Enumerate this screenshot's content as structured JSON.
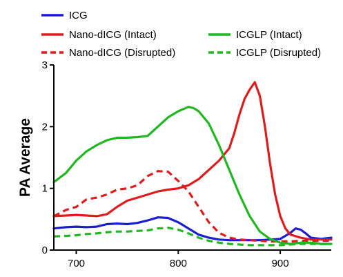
{
  "chart_data": {
    "type": "line",
    "title": "",
    "xlabel": "",
    "ylabel": "PA Average",
    "xlim": [
      678,
      950
    ],
    "ylim": [
      0,
      3
    ],
    "xticks": [
      700,
      800,
      900
    ],
    "yticks": [
      0,
      1,
      2,
      3
    ],
    "grid": false,
    "legend_position": "top",
    "series": [
      {
        "name": "ICG",
        "color": "#1b1bd6",
        "dash": "solid",
        "x": [
          678,
          690,
          700,
          710,
          720,
          730,
          740,
          750,
          760,
          770,
          780,
          790,
          800,
          810,
          820,
          830,
          840,
          850,
          860,
          870,
          880,
          890,
          900,
          910,
          915,
          920,
          925,
          930,
          940,
          950
        ],
        "y": [
          0.35,
          0.37,
          0.38,
          0.37,
          0.38,
          0.42,
          0.43,
          0.42,
          0.44,
          0.48,
          0.53,
          0.52,
          0.45,
          0.35,
          0.25,
          0.2,
          0.17,
          0.16,
          0.16,
          0.16,
          0.16,
          0.17,
          0.18,
          0.28,
          0.35,
          0.33,
          0.27,
          0.2,
          0.18,
          0.2
        ]
      },
      {
        "name": "Nano-dICG (Intact)",
        "color": "#e01b1b",
        "dash": "solid",
        "x": [
          678,
          690,
          700,
          710,
          720,
          730,
          740,
          750,
          760,
          770,
          780,
          790,
          800,
          810,
          820,
          830,
          840,
          850,
          855,
          860,
          865,
          870,
          875,
          880,
          885,
          890,
          895,
          900,
          905,
          910,
          920,
          930,
          950
        ],
        "y": [
          0.55,
          0.56,
          0.57,
          0.56,
          0.55,
          0.58,
          0.7,
          0.8,
          0.85,
          0.9,
          0.95,
          0.98,
          1.0,
          1.05,
          1.15,
          1.3,
          1.45,
          1.65,
          1.9,
          2.2,
          2.45,
          2.6,
          2.72,
          2.5,
          2.0,
          1.4,
          0.9,
          0.55,
          0.35,
          0.25,
          0.2,
          0.17,
          0.17
        ]
      },
      {
        "name": "Nano-dICG (Disrupted)",
        "color": "#e01b1b",
        "dash": "dashed",
        "x": [
          678,
          690,
          700,
          710,
          720,
          730,
          740,
          750,
          760,
          770,
          780,
          790,
          800,
          810,
          820,
          830,
          840,
          850,
          860,
          870,
          880,
          890,
          900,
          910,
          920,
          930,
          950
        ],
        "y": [
          0.55,
          0.65,
          0.7,
          0.82,
          0.85,
          0.9,
          0.98,
          1.0,
          1.05,
          1.2,
          1.28,
          1.27,
          1.12,
          0.95,
          0.7,
          0.45,
          0.28,
          0.2,
          0.17,
          0.16,
          0.15,
          0.14,
          0.14,
          0.14,
          0.15,
          0.15,
          0.15
        ]
      },
      {
        "name": "ICGLP (Intact)",
        "color": "#1fb81f",
        "dash": "solid",
        "x": [
          678,
          690,
          700,
          710,
          720,
          730,
          740,
          750,
          760,
          770,
          780,
          790,
          800,
          810,
          815,
          820,
          830,
          840,
          850,
          860,
          870,
          880,
          890,
          900,
          910,
          920,
          930,
          940,
          950
        ],
        "y": [
          1.1,
          1.25,
          1.45,
          1.6,
          1.7,
          1.78,
          1.82,
          1.82,
          1.83,
          1.85,
          2.0,
          2.15,
          2.25,
          2.32,
          2.3,
          2.25,
          2.05,
          1.7,
          1.3,
          0.9,
          0.55,
          0.3,
          0.18,
          0.12,
          0.1,
          0.12,
          0.12,
          0.1,
          0.1
        ]
      },
      {
        "name": "ICGLP (Disrupted)",
        "color": "#1fb81f",
        "dash": "dashed",
        "x": [
          678,
          690,
          700,
          710,
          720,
          730,
          740,
          750,
          760,
          770,
          780,
          790,
          800,
          810,
          820,
          830,
          840,
          850,
          860,
          870,
          880,
          890,
          900,
          910,
          920,
          930,
          950
        ],
        "y": [
          0.22,
          0.23,
          0.24,
          0.26,
          0.27,
          0.29,
          0.3,
          0.3,
          0.31,
          0.32,
          0.35,
          0.36,
          0.33,
          0.27,
          0.2,
          0.15,
          0.12,
          0.1,
          0.09,
          0.08,
          0.08,
          0.08,
          0.08,
          0.09,
          0.1,
          0.1,
          0.1
        ]
      }
    ]
  }
}
